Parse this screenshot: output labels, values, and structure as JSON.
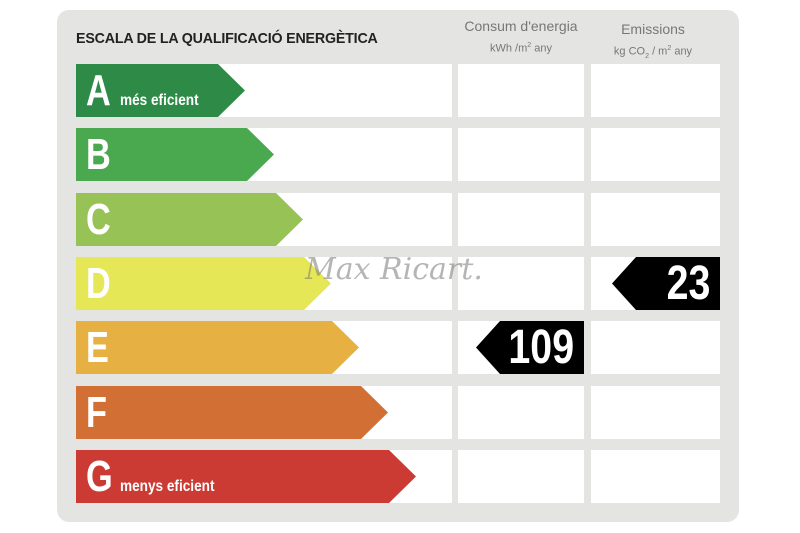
{
  "title": "ESCALA DE LA QUALIFICACIÓ ENERGÈTICA",
  "columns": {
    "energy": {
      "label": "Consum d'energia",
      "unit_prefix": "kWh /m",
      "unit_sup": "2",
      "unit_suffix": " any"
    },
    "emissions": {
      "label": "Emissions",
      "unit_prefix": "kg CO",
      "unit_sub": "2",
      "unit_mid": "  / m",
      "unit_sup": "2",
      "unit_suffix": " any"
    }
  },
  "ratings": [
    {
      "letter": "A",
      "sublabel": "més eficient",
      "color": "#2e8b47"
    },
    {
      "letter": "B",
      "sublabel": "",
      "color": "#4aa84f"
    },
    {
      "letter": "C",
      "sublabel": "",
      "color": "#97c356"
    },
    {
      "letter": "D",
      "sublabel": "",
      "color": "#e6e756"
    },
    {
      "letter": "E",
      "sublabel": "",
      "color": "#e6b043"
    },
    {
      "letter": "F",
      "sublabel": "",
      "color": "#d26f35"
    },
    {
      "letter": "G",
      "sublabel": "menys eficient",
      "color": "#cb3a33"
    }
  ],
  "energy_value": {
    "value": "109",
    "rating": "E"
  },
  "emissions_value": {
    "value": "23",
    "rating": "D"
  },
  "watermark": "Max Ricart."
}
